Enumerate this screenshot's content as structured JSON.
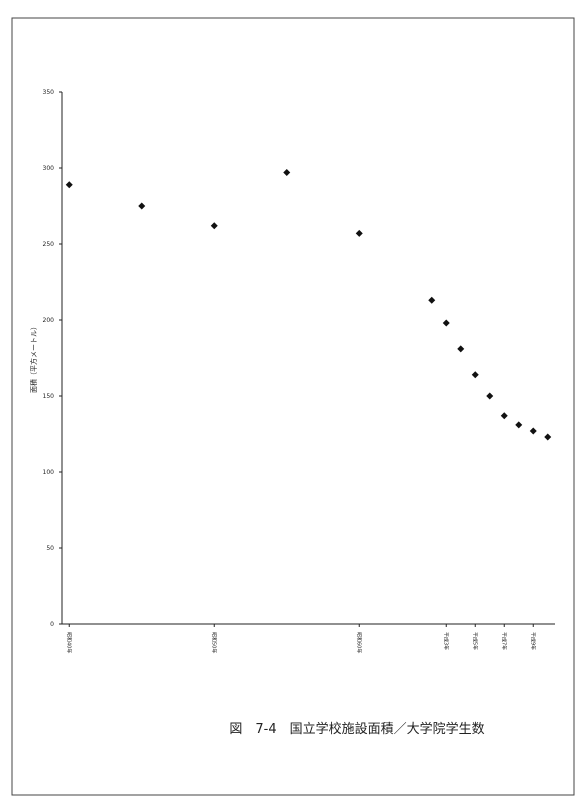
{
  "chart_data": {
    "type": "scatter",
    "title": "図　7-4　国立学校施設面積／大学院学生数",
    "y_label": "面積（平方メートル）",
    "x": [
      1965,
      1970,
      1975,
      1980,
      1985,
      1990,
      1991,
      1992,
      1993,
      1994,
      1995,
      1996,
      1997,
      1998
    ],
    "values": [
      289,
      275,
      262,
      297,
      257,
      213,
      198,
      181,
      164,
      150,
      137,
      131,
      127,
      123
    ],
    "color": "#111111",
    "xlim": [
      1964.5,
      1998.5
    ],
    "xticks": [
      {
        "value": 1965,
        "label": "昭和40年"
      },
      {
        "value": 1975,
        "label": "昭和50年"
      },
      {
        "value": 1985,
        "label": "昭和60年"
      },
      {
        "value": 1991,
        "label": "平成3年"
      },
      {
        "value": 1993,
        "label": "平成5年"
      },
      {
        "value": 1995,
        "label": "平成7年"
      },
      {
        "value": 1997,
        "label": "平成9年"
      }
    ],
    "ylim": [
      0,
      350
    ],
    "yticks": [
      0,
      50,
      100,
      150,
      200,
      250,
      300,
      350
    ]
  }
}
